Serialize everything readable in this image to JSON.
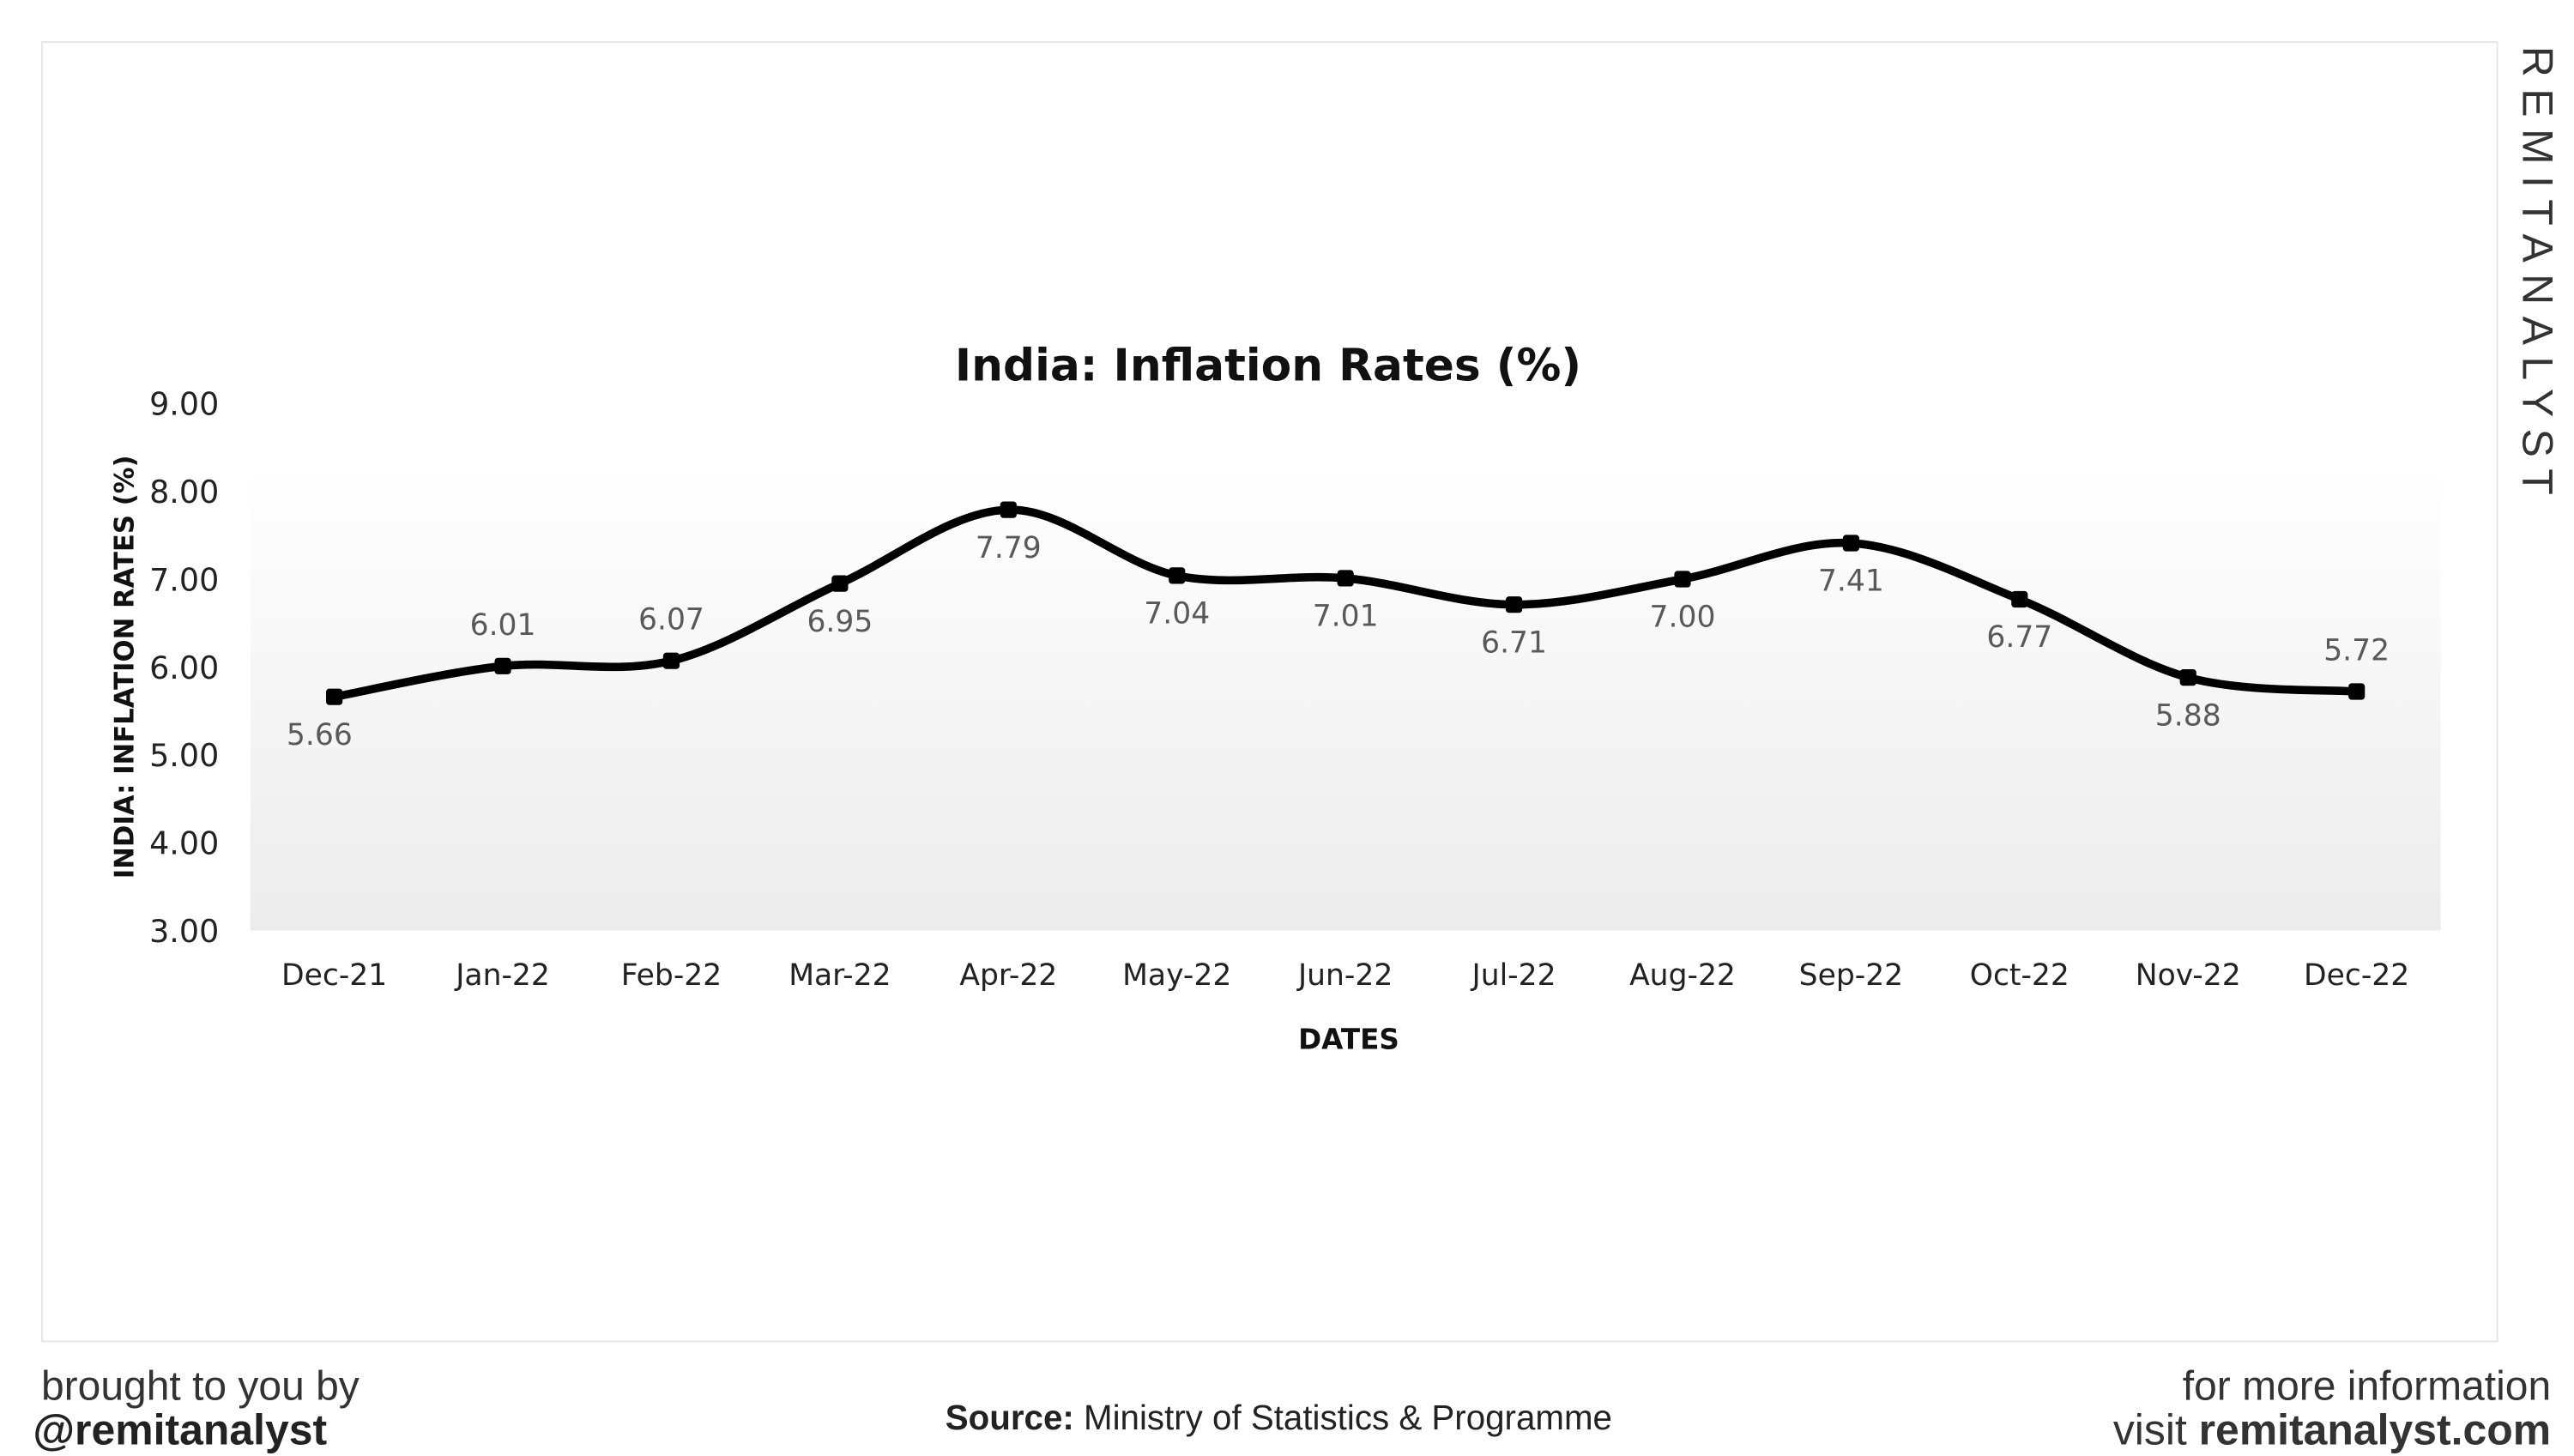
{
  "chart_data": {
    "type": "line",
    "title": "India: Inflation Rates (%)",
    "xlabel": "DATES",
    "ylabel": "INDIA: INFLATION RATES (%)",
    "categories": [
      "Dec-21",
      "Jan-22",
      "Feb-22",
      "Mar-22",
      "Apr-22",
      "May-22",
      "Jun-22",
      "Jul-22",
      "Aug-22",
      "Sep-22",
      "Oct-22",
      "Nov-22",
      "Dec-22"
    ],
    "values": [
      5.66,
      6.01,
      6.07,
      6.95,
      7.79,
      7.04,
      7.01,
      6.71,
      7.0,
      7.41,
      6.77,
      5.88,
      5.72
    ],
    "data_labels": [
      "5.66",
      "6.01",
      "6.07",
      "6.95",
      "7.79",
      "7.04",
      "7.01",
      "6.71",
      "7.00",
      "7.41",
      "6.77",
      "5.88",
      "5.72"
    ],
    "yticks": [
      "3.00",
      "4.00",
      "5.00",
      "6.00",
      "7.00",
      "8.00",
      "9.00"
    ],
    "ylim": [
      3,
      9
    ],
    "grid": false,
    "smooth": true,
    "line_color": "#000000",
    "label_color": "#595959"
  },
  "branding": {
    "watermark": "REMITANALYST"
  },
  "footer": {
    "left_line1": "brought to you by",
    "left_line2": "@remitanalyst",
    "source_label": "Source:",
    "source_text": " Ministry of Statistics & Programme",
    "right_line1": "for more information",
    "right_prefix": "visit ",
    "right_site": "remitanalyst.com"
  }
}
